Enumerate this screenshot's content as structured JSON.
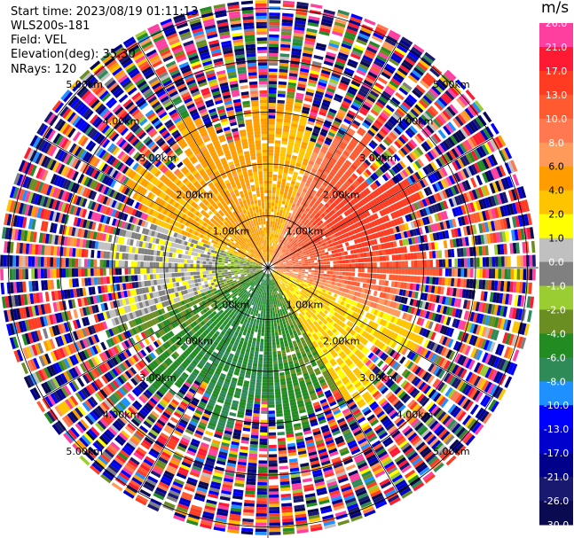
{
  "header": {
    "start_time": "Start time: 2023/08/19 01:11:13",
    "instrument": "WLS200s-181",
    "field": "Field: VEL",
    "elevation": "Elevation(deg): 35.30",
    "nrays": "NRays: 120"
  },
  "colorbar": {
    "unit": "m/s",
    "ticks": [
      "26.0",
      "21.0",
      "17.0",
      "13.0",
      "10.0",
      "8.0",
      "6.0",
      "4.0",
      "2.0",
      "1.0",
      "0.0",
      "-1.0",
      "-2.0",
      "-4.0",
      "-6.0",
      "-8.0",
      "-10.0",
      "-13.0",
      "-17.0",
      "-21.0",
      "-26.0",
      "-30.0"
    ],
    "colors": [
      "#ff3fa0",
      "#ff1a33",
      "#ff3b22",
      "#ff5a30",
      "#ff7850",
      "#ff9a5a",
      "#ff9d00",
      "#ffc400",
      "#ffff00",
      "#c0c0c0",
      "#808080",
      "#9acd32",
      "#6b8e23",
      "#228b22",
      "#2e8b57",
      "#1e90ff",
      "#0000ff",
      "#0000cd",
      "#00008b",
      "#191970",
      "#0a0a50"
    ]
  },
  "chart_data": {
    "type": "heatmap",
    "title": "",
    "projection": "polar PPI",
    "field": "VEL",
    "units": "m/s",
    "nrays": 120,
    "range_rings_km": [
      1.0,
      2.0,
      3.0,
      4.0,
      5.0
    ],
    "ring_labels": [
      "1.00km",
      "2.00km",
      "3.00km",
      "4.00km",
      "5.00km"
    ],
    "color_range": [
      -30.0,
      26.0
    ],
    "pattern": {
      "north_east_near": "positive 6 to 17 m/s (orange/red)",
      "north_west_near": "positive 2 to 6 m/s (yellow)",
      "east_southeast_near": "positive 1 to 4 m/s (yellow)",
      "south_near": "negative -2 to -8 m/s (green)",
      "west_near": "near zero (gray) and -1 to -2 m/s (olive)",
      "beyond_about_3km": "noise with all colors"
    }
  }
}
